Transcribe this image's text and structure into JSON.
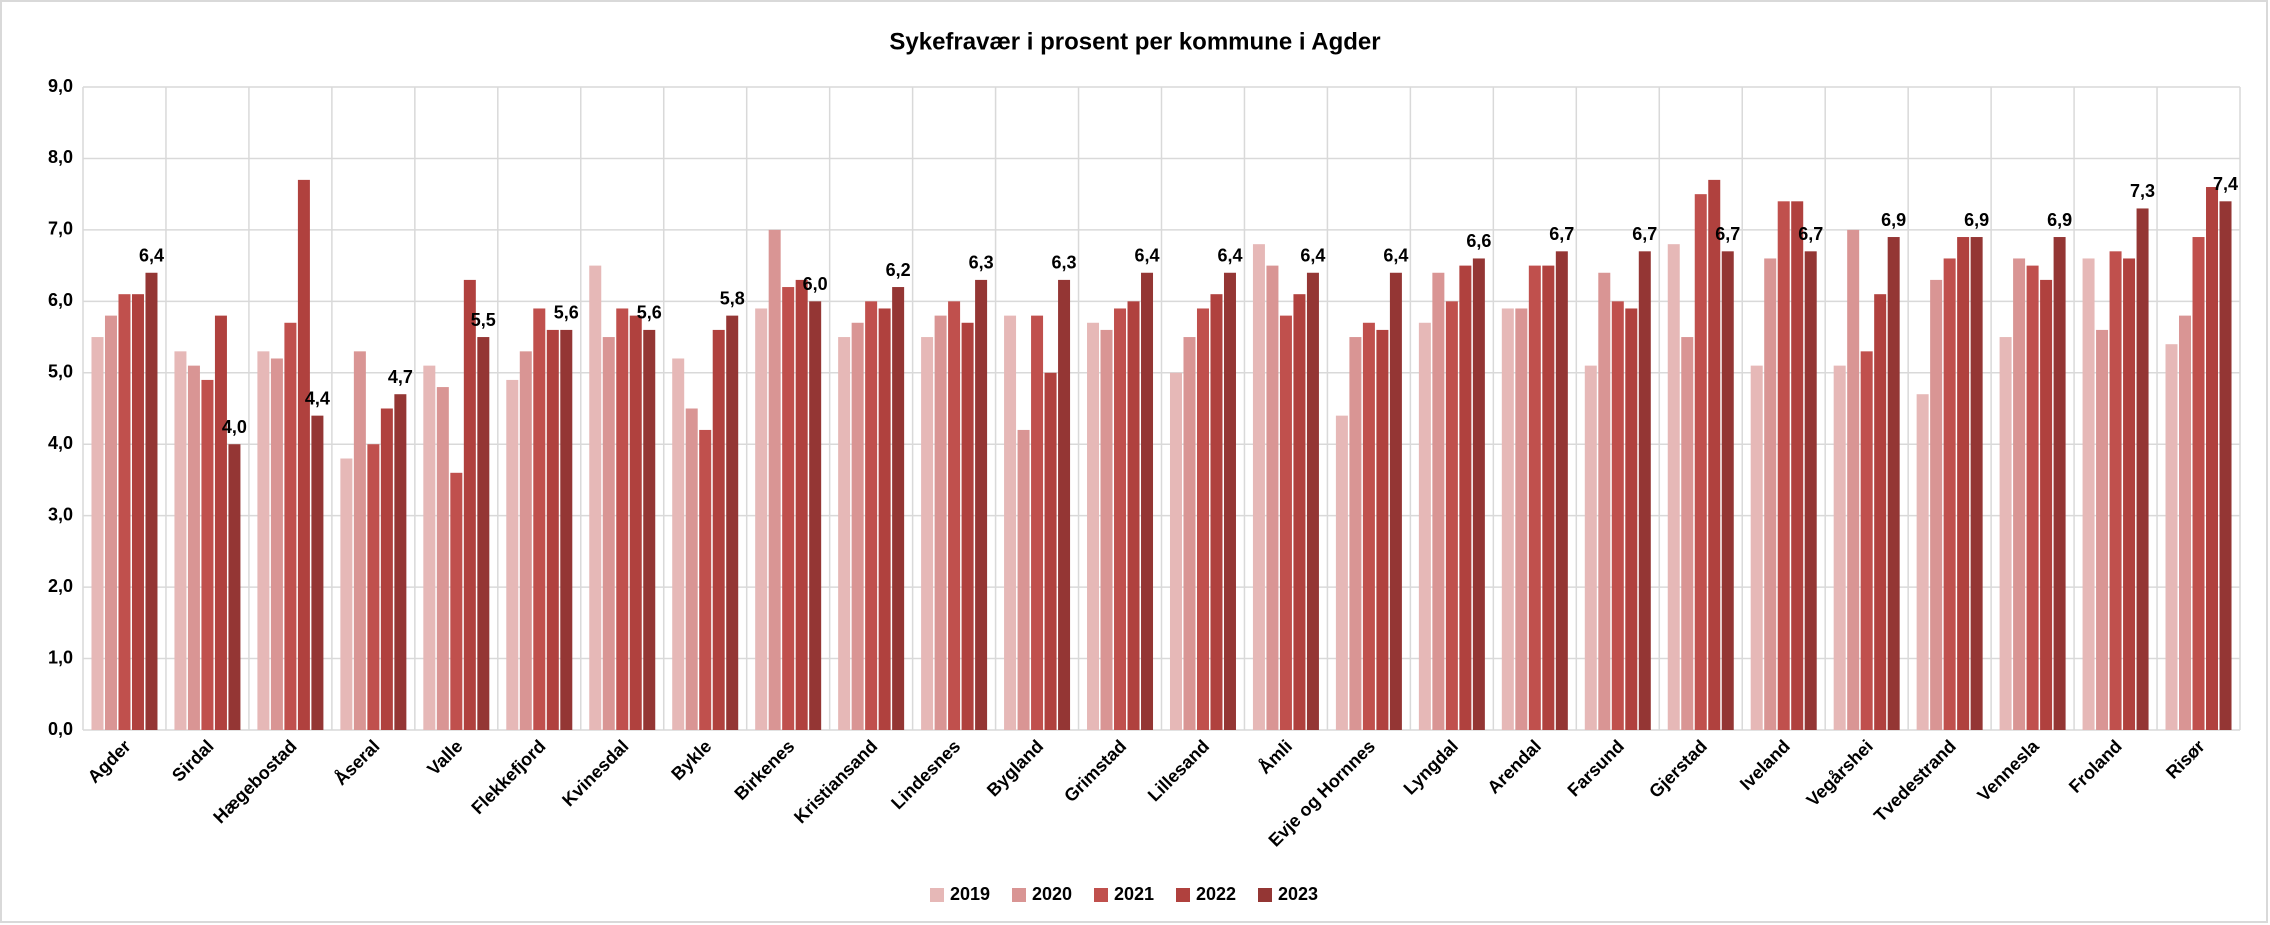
{
  "chart_data": {
    "type": "bar",
    "title": "Sykefravær i prosent per kommune i Agder",
    "categories": [
      "Agder",
      "Sirdal",
      "Hægebostad",
      "Åseral",
      "Valle",
      "Flekkefjord",
      "Kvinesdal",
      "Bykle",
      "Birkenes",
      "Kristiansand",
      "Lindesnes",
      "Bygland",
      "Grimstad",
      "Lillesand",
      "Åmli",
      "Evje og Hornnes",
      "Lyngdal",
      "Arendal",
      "Farsund",
      "Gjerstad",
      "Iveland",
      "Vegårshei",
      "Tvedestrand",
      "Vennesla",
      "Froland",
      "Risør"
    ],
    "series": [
      {
        "name": "2019",
        "color": "#e6b8b7",
        "values": [
          5.5,
          5.3,
          5.3,
          3.8,
          5.1,
          4.9,
          6.5,
          5.2,
          5.9,
          5.5,
          5.5,
          5.8,
          5.7,
          5.0,
          6.8,
          4.4,
          5.7,
          5.9,
          5.1,
          6.8,
          5.1,
          5.1,
          4.7,
          5.5,
          6.6,
          5.4
        ]
      },
      {
        "name": "2020",
        "color": "#d99594",
        "values": [
          5.8,
          5.1,
          5.2,
          5.3,
          4.8,
          5.3,
          5.5,
          4.5,
          7.0,
          5.7,
          5.8,
          4.2,
          5.6,
          5.5,
          6.5,
          5.5,
          6.4,
          5.9,
          6.4,
          5.5,
          6.6,
          7.0,
          6.3,
          6.6,
          5.6,
          5.8
        ]
      },
      {
        "name": "2021",
        "color": "#c0504d",
        "values": [
          6.1,
          4.9,
          5.7,
          4.0,
          3.6,
          5.9,
          5.9,
          4.2,
          6.2,
          6.0,
          6.0,
          5.8,
          5.9,
          5.9,
          5.8,
          5.7,
          6.0,
          6.5,
          6.0,
          7.5,
          7.4,
          5.3,
          6.6,
          6.5,
          6.7,
          6.9
        ]
      },
      {
        "name": "2022",
        "color": "#b0413e",
        "values": [
          6.1,
          5.8,
          7.7,
          4.5,
          6.3,
          5.6,
          5.8,
          5.6,
          6.3,
          5.9,
          5.7,
          5.0,
          6.0,
          6.1,
          6.1,
          5.6,
          6.5,
          6.5,
          5.9,
          7.7,
          7.4,
          6.1,
          6.9,
          6.3,
          6.6,
          7.6
        ]
      },
      {
        "name": "2023",
        "color": "#943634",
        "values": [
          6.4,
          4.0,
          4.4,
          4.7,
          5.5,
          5.6,
          5.6,
          5.8,
          6.0,
          6.2,
          6.3,
          6.3,
          6.4,
          6.4,
          6.4,
          6.4,
          6.6,
          6.7,
          6.7,
          6.7,
          6.7,
          6.9,
          6.9,
          6.9,
          7.3,
          7.4
        ],
        "value_labels": [
          "6,4",
          "4,0",
          "4,4",
          "4,7",
          "5,5",
          "5,6",
          "5,6",
          "5,8",
          "6,0",
          "6,2",
          "6,3",
          "6,3",
          "6,4",
          "6,4",
          "6,4",
          "6,4",
          "6,6",
          "6,7",
          "6,7",
          "6,7",
          "6,7",
          "6,9",
          "6,9",
          "6,9",
          "7,3",
          "7,4"
        ]
      }
    ],
    "ylim": [
      0,
      9
    ],
    "yticks": [
      {
        "value": 0,
        "label": "0,0"
      },
      {
        "value": 1,
        "label": "1,0"
      },
      {
        "value": 2,
        "label": "2,0"
      },
      {
        "value": 3,
        "label": "3,0"
      },
      {
        "value": 4,
        "label": "4,0"
      },
      {
        "value": 5,
        "label": "5,0"
      },
      {
        "value": 6,
        "label": "6,0"
      },
      {
        "value": 7,
        "label": "7,0"
      },
      {
        "value": 8,
        "label": "8,0"
      },
      {
        "value": 9,
        "label": "9,0"
      }
    ],
    "grid": true,
    "legend": "bottom"
  }
}
